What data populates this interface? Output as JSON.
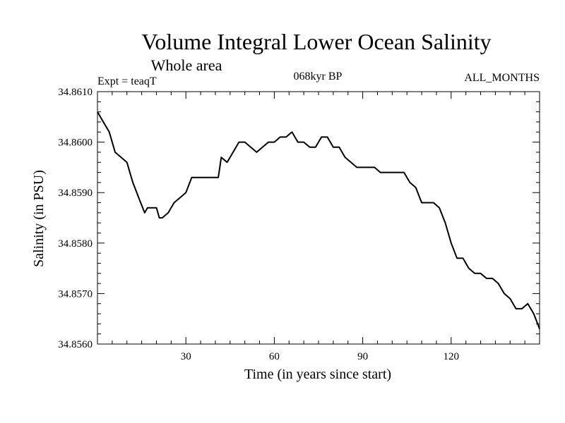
{
  "chart_data": {
    "type": "line",
    "title": "Volume Integral Lower Ocean Salinity",
    "subtitle": "Whole area",
    "annotations": {
      "left": "Expt = teaqT",
      "center": "068kyr BP",
      "right": "ALL_MONTHS"
    },
    "xlabel": "Time (in years since start)",
    "ylabel": "Salinity (in PSU)",
    "xlim": [
      0,
      150
    ],
    "ylim": [
      34.856,
      34.861
    ],
    "xticks": [
      30,
      60,
      90,
      120
    ],
    "xtick_labels": [
      "30",
      "60",
      "90",
      "120"
    ],
    "yticks": [
      34.856,
      34.857,
      34.858,
      34.859,
      34.86,
      34.861
    ],
    "ytick_labels": [
      "34.8560",
      "34.8570",
      "34.8580",
      "34.8590",
      "34.8600",
      "34.8610"
    ],
    "series": [
      {
        "name": "Salinity",
        "x": [
          0,
          2,
          4,
          6,
          8,
          10,
          12,
          14,
          16,
          17,
          18,
          20,
          21,
          22,
          24,
          26,
          28,
          30,
          32,
          34,
          36,
          38,
          40,
          41,
          42,
          44,
          46,
          48,
          50,
          52,
          54,
          56,
          58,
          60,
          62,
          64,
          66,
          68,
          70,
          72,
          74,
          76,
          77,
          78,
          80,
          82,
          84,
          86,
          88,
          90,
          92,
          94,
          96,
          98,
          100,
          102,
          104,
          106,
          108,
          110,
          112,
          114,
          116,
          118,
          120,
          122,
          124,
          126,
          128,
          130,
          132,
          134,
          136,
          138,
          140,
          142,
          144,
          146,
          148,
          150
        ],
        "y": [
          34.8606,
          34.8604,
          34.8602,
          34.8598,
          34.8597,
          34.8596,
          34.8592,
          34.8589,
          34.8586,
          34.8587,
          34.8587,
          34.8587,
          34.8585,
          34.8585,
          34.8586,
          34.8588,
          34.8589,
          34.859,
          34.8593,
          34.8593,
          34.8593,
          34.8593,
          34.8593,
          34.8593,
          34.8597,
          34.8596,
          34.8598,
          34.86,
          34.86,
          34.8599,
          34.8598,
          34.8599,
          34.86,
          34.86,
          34.8601,
          34.8601,
          34.8602,
          34.86,
          34.86,
          34.8599,
          34.8599,
          34.8601,
          34.8601,
          34.8601,
          34.8599,
          34.8599,
          34.8597,
          34.8596,
          34.8595,
          34.8595,
          34.8595,
          34.8595,
          34.8594,
          34.8594,
          34.8594,
          34.8594,
          34.8594,
          34.8592,
          34.8591,
          34.8588,
          34.8588,
          34.8588,
          34.8587,
          34.8584,
          34.858,
          34.8577,
          34.8577,
          34.8575,
          34.8574,
          34.8574,
          34.8573,
          34.8573,
          34.8572,
          34.857,
          34.8569,
          34.8567,
          34.8567,
          34.8568,
          34.8566,
          34.8563
        ]
      }
    ]
  }
}
